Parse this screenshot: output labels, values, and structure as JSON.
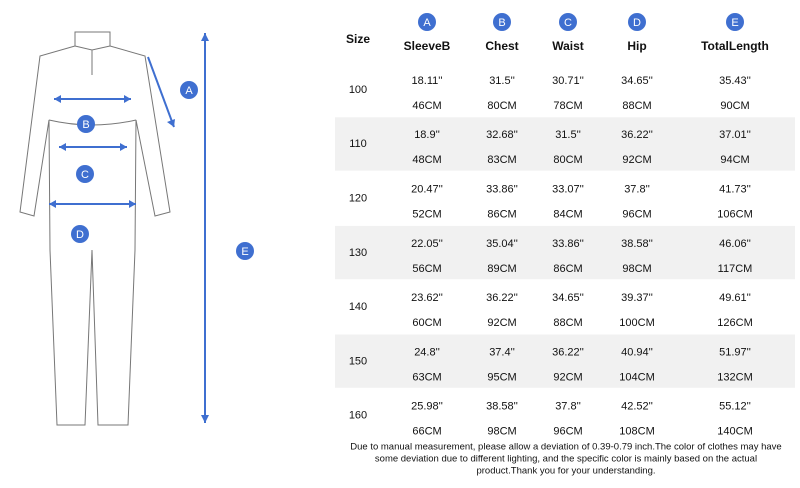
{
  "table": {
    "size_header": "Size",
    "columns": [
      {
        "letter": "A",
        "label": "SleeveB"
      },
      {
        "letter": "B",
        "label": "Chest"
      },
      {
        "letter": "C",
        "label": "Waist"
      },
      {
        "letter": "D",
        "label": "Hip"
      },
      {
        "letter": "E",
        "label": "TotalLength"
      }
    ],
    "rows": [
      {
        "size": "100",
        "inch": [
          "18.11''",
          "31.5''",
          "30.71''",
          "34.65''",
          "35.43''"
        ],
        "cm": [
          "46CM",
          "80CM",
          "78CM",
          "88CM",
          "90CM"
        ]
      },
      {
        "size": "110",
        "inch": [
          "18.9''",
          "32.68''",
          "31.5''",
          "36.22''",
          "37.01''"
        ],
        "cm": [
          "48CM",
          "83CM",
          "80CM",
          "92CM",
          "94CM"
        ]
      },
      {
        "size": "120",
        "inch": [
          "20.47''",
          "33.86''",
          "33.07''",
          "37.8''",
          "41.73''"
        ],
        "cm": [
          "52CM",
          "86CM",
          "84CM",
          "96CM",
          "106CM"
        ]
      },
      {
        "size": "130",
        "inch": [
          "22.05''",
          "35.04''",
          "33.86''",
          "38.58''",
          "46.06''"
        ],
        "cm": [
          "56CM",
          "89CM",
          "86CM",
          "98CM",
          "117CM"
        ]
      },
      {
        "size": "140",
        "inch": [
          "23.62''",
          "36.22''",
          "34.65''",
          "39.37''",
          "49.61''"
        ],
        "cm": [
          "60CM",
          "92CM",
          "88CM",
          "100CM",
          "126CM"
        ]
      },
      {
        "size": "150",
        "inch": [
          "24.8''",
          "37.4''",
          "36.22''",
          "40.94''",
          "51.97''"
        ],
        "cm": [
          "63CM",
          "95CM",
          "92CM",
          "104CM",
          "132CM"
        ]
      },
      {
        "size": "160",
        "inch": [
          "25.98''",
          "38.58''",
          "37.8''",
          "42.52''",
          "55.12''"
        ],
        "cm": [
          "66CM",
          "98CM",
          "96CM",
          "108CM",
          "140CM"
        ]
      }
    ]
  },
  "note": [
    "Due to manual measurement, please allow a deviation of 0.39-0.79 inch.The color of clothes may have",
    "some deviation due to different lighting, and the specific color is mainly based on the actual",
    "product.Thank you for your understanding."
  ]
}
